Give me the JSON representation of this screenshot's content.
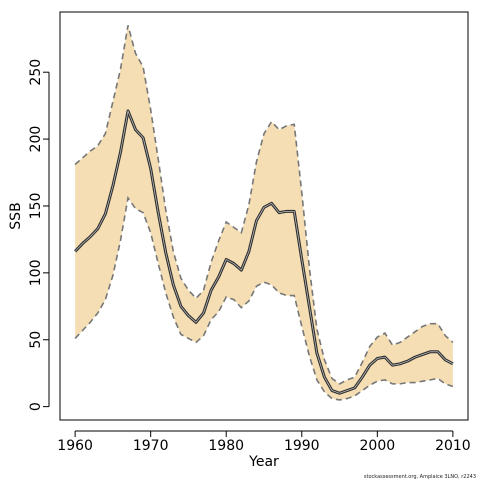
{
  "chart_data": {
    "type": "line",
    "title": "",
    "xlabel": "Year",
    "ylabel": "SSB",
    "xlim": [
      1958,
      2012
    ],
    "ylim": [
      -10,
      295
    ],
    "x_ticks": [
      1960,
      1970,
      1980,
      1990,
      2000,
      2010
    ],
    "y_ticks": [
      0,
      50,
      100,
      150,
      200,
      250
    ],
    "grid": false,
    "legend": "none",
    "colors": {
      "band_fill": "#f5deb3",
      "band_edge": "#777777",
      "line": "#333333",
      "axis": "#000000"
    },
    "footnote": "stockassessment.org, Amplaice 3LNO, r2243",
    "x": [
      1960,
      1961,
      1962,
      1963,
      1964,
      1965,
      1966,
      1967,
      1968,
      1969,
      1970,
      1971,
      1972,
      1973,
      1974,
      1975,
      1976,
      1977,
      1978,
      1979,
      1980,
      1981,
      1982,
      1983,
      1984,
      1985,
      1986,
      1987,
      1988,
      1989,
      1990,
      1991,
      1992,
      1993,
      1994,
      1995,
      1996,
      1997,
      1998,
      1999,
      2000,
      2001,
      2002,
      2003,
      2004,
      2005,
      2006,
      2007,
      2008,
      2009,
      2010
    ],
    "series": [
      {
        "role": "estimate",
        "values": [
          116,
          122,
          127,
          133,
          144,
          165,
          190,
          221,
          207,
          201,
          178,
          145,
          115,
          91,
          75,
          68,
          63,
          70,
          87,
          97,
          110,
          107,
          102,
          116,
          139,
          149,
          152,
          145,
          146,
          146,
          110,
          75,
          40,
          22,
          12,
          10,
          12,
          14,
          22,
          31,
          36,
          37,
          31,
          32,
          34,
          37,
          39,
          41,
          41,
          35,
          32
        ]
      },
      {
        "role": "upper",
        "values": [
          181,
          186,
          191,
          195,
          204,
          228,
          252,
          285,
          264,
          254,
          222,
          185,
          147,
          116,
          96,
          87,
          81,
          87,
          108,
          124,
          138,
          134,
          130,
          151,
          183,
          204,
          213,
          207,
          210,
          211,
          160,
          104,
          58,
          35,
          21,
          17,
          20,
          22,
          33,
          45,
          52,
          55,
          46,
          48,
          52,
          56,
          60,
          62,
          62,
          53,
          48
        ]
      },
      {
        "role": "lower",
        "values": [
          51,
          57,
          63,
          70,
          80,
          98,
          124,
          156,
          148,
          145,
          130,
          107,
          85,
          67,
          54,
          51,
          48,
          53,
          65,
          71,
          82,
          80,
          74,
          79,
          90,
          93,
          91,
          85,
          83,
          83,
          60,
          38,
          20,
          11,
          6,
          5,
          6,
          8,
          12,
          16,
          19,
          20,
          17,
          17,
          18,
          18,
          19,
          20,
          21,
          17,
          15
        ]
      }
    ]
  }
}
